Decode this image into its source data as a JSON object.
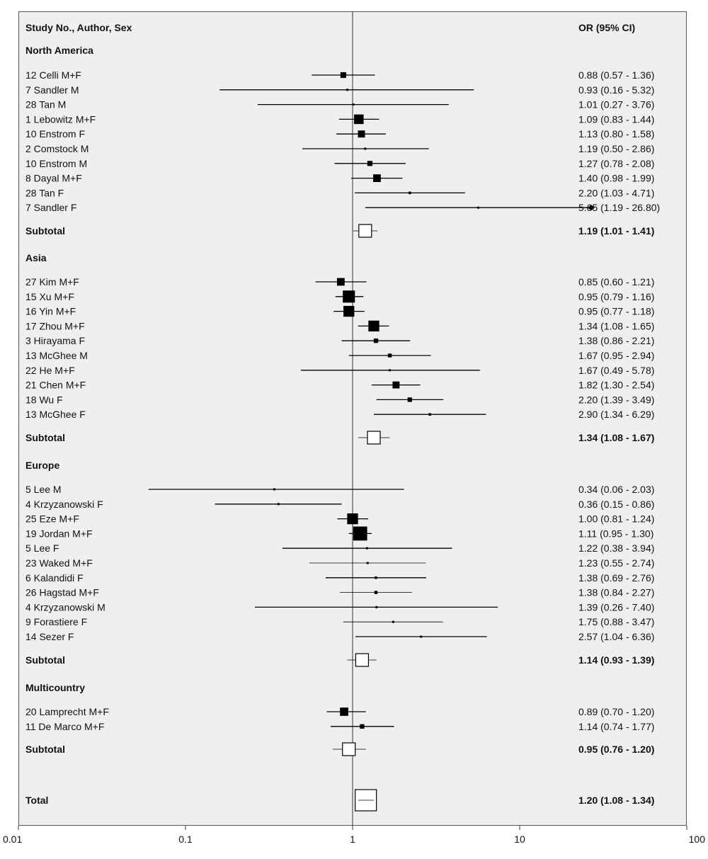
{
  "chart_data": {
    "type": "forest",
    "header": {
      "left": "Study No., Author, Sex",
      "right": "OR (95% CI)"
    },
    "x_axis": {
      "scale": "log",
      "range": [
        0.01,
        100
      ],
      "ticks": [
        "0.01",
        "0.1",
        "1",
        "10",
        "100"
      ],
      "reference_line": 1
    },
    "groups": [
      {
        "name": "North America",
        "studies": [
          {
            "label": "12 Celli M+F",
            "or": 0.88,
            "lo": 0.57,
            "hi": 1.36,
            "text": "0.88 (0.57 - 1.36)",
            "weight": 9
          },
          {
            "label": "7 Sandler M",
            "or": 0.93,
            "lo": 0.16,
            "hi": 5.32,
            "text": "0.93 (0.16 - 5.32)",
            "weight": 2
          },
          {
            "label": "28 Tan M",
            "or": 1.01,
            "lo": 0.27,
            "hi": 3.76,
            "text": "1.01 (0.27 - 3.76)",
            "weight": 2
          },
          {
            "label": "1 Lebowitz M+F",
            "or": 1.09,
            "lo": 0.83,
            "hi": 1.44,
            "text": "1.09 (0.83 - 1.44)",
            "weight": 15
          },
          {
            "label": "10 Enstrom F",
            "or": 1.13,
            "lo": 0.8,
            "hi": 1.58,
            "text": "1.13 (0.80 - 1.58)",
            "weight": 11
          },
          {
            "label": "2 Comstock M",
            "or": 1.19,
            "lo": 0.5,
            "hi": 2.86,
            "text": "1.19 (0.50 - 2.86)",
            "weight": 3
          },
          {
            "label": "10 Enstrom M",
            "or": 1.27,
            "lo": 0.78,
            "hi": 2.08,
            "text": "1.27 (0.78 - 2.08)",
            "weight": 8
          },
          {
            "label": "8 Dayal M+F",
            "or": 1.4,
            "lo": 0.98,
            "hi": 1.99,
            "text": "1.40 (0.98 - 1.99)",
            "weight": 12
          },
          {
            "label": "28 Tan F",
            "or": 2.2,
            "lo": 1.03,
            "hi": 4.71,
            "text": "2.20 (1.03 - 4.71)",
            "weight": 4
          },
          {
            "label": "7 Sandler F",
            "or": 5.65,
            "lo": 1.19,
            "hi": 26.8,
            "text": "5.65 (1.19 - 26.80)",
            "weight": 2,
            "arrow": true
          }
        ],
        "subtotal": {
          "label": "Subtotal",
          "or": 1.19,
          "lo": 1.01,
          "hi": 1.41,
          "text": "1.19 (1.01 - 1.41)"
        }
      },
      {
        "name": "Asia",
        "studies": [
          {
            "label": "27 Kim M+F",
            "or": 0.85,
            "lo": 0.6,
            "hi": 1.21,
            "text": "0.85 (0.60 - 1.21)",
            "weight": 12
          },
          {
            "label": "15 Xu M+F",
            "or": 0.95,
            "lo": 0.79,
            "hi": 1.16,
            "text": "0.95 (0.79 - 1.16)",
            "weight": 19
          },
          {
            "label": "16 Yin  M+F",
            "or": 0.95,
            "lo": 0.77,
            "hi": 1.18,
            "text": "0.95 (0.77 - 1.18)",
            "weight": 17
          },
          {
            "label": "17 Zhou M+F",
            "or": 1.34,
            "lo": 1.08,
            "hi": 1.65,
            "text": "1.34 (1.08 - 1.65)",
            "weight": 17
          },
          {
            "label": "3 Hirayama F",
            "or": 1.38,
            "lo": 0.86,
            "hi": 2.21,
            "text": "1.38 (0.86 - 2.21)",
            "weight": 7
          },
          {
            "label": "13 McGhee M",
            "or": 1.67,
            "lo": 0.95,
            "hi": 2.94,
            "text": "1.67 (0.95 - 2.94)",
            "weight": 6
          },
          {
            "label": "22 He M+F",
            "or": 1.67,
            "lo": 0.49,
            "hi": 5.78,
            "text": "1.67 (0.49 - 5.78)",
            "weight": 2
          },
          {
            "label": "21 Chen M+F",
            "or": 1.82,
            "lo": 1.3,
            "hi": 2.54,
            "text": "1.82 (1.30 - 2.54)",
            "weight": 11
          },
          {
            "label": "18 Wu F",
            "or": 2.2,
            "lo": 1.39,
            "hi": 3.49,
            "text": "2.20 (1.39 - 3.49)",
            "weight": 7
          },
          {
            "label": "13 McGhee F",
            "or": 2.9,
            "lo": 1.34,
            "hi": 6.29,
            "text": "2.90 (1.34 - 6.29)",
            "weight": 4
          }
        ],
        "subtotal": {
          "label": "Subtotal",
          "or": 1.34,
          "lo": 1.08,
          "hi": 1.67,
          "text": "1.34 (1.08 - 1.67)"
        }
      },
      {
        "name": "Europe",
        "studies": [
          {
            "label": "5 Lee M",
            "or": 0.34,
            "lo": 0.06,
            "hi": 2.03,
            "text": "0.34 (0.06 - 2.03)",
            "weight": 2
          },
          {
            "label": "4 Krzyzanowski  F",
            "or": 0.36,
            "lo": 0.15,
            "hi": 0.86,
            "text": "0.36 (0.15 - 0.86)",
            "weight": 3
          },
          {
            "label": "25 Eze M+F",
            "or": 1.0,
            "lo": 0.81,
            "hi": 1.24,
            "text": "1.00 (0.81 - 1.24)",
            "weight": 17
          },
          {
            "label": "19 Jordan M+F",
            "or": 1.11,
            "lo": 0.95,
            "hi": 1.3,
            "text": "1.11 (0.95 - 1.30)",
            "weight": 22
          },
          {
            "label": "5 Lee F",
            "or": 1.22,
            "lo": 0.38,
            "hi": 3.94,
            "text": "1.22 (0.38 - 3.94)",
            "weight": 2
          },
          {
            "label": "23 Waked M+F",
            "or": 1.23,
            "lo": 0.55,
            "hi": 2.74,
            "text": "1.23 (0.55 - 2.74)",
            "weight": 3,
            "thin": true
          },
          {
            "label": "6 Kalandidi  F",
            "or": 1.38,
            "lo": 0.69,
            "hi": 2.76,
            "text": "1.38 (0.69 - 2.76)",
            "weight": 4
          },
          {
            "label": "26 Hagstad M+F",
            "or": 1.38,
            "lo": 0.84,
            "hi": 2.27,
            "text": "1.38 (0.84 - 2.27)",
            "weight": 5,
            "thin": true
          },
          {
            "label": "4 Krzyzanowski  M",
            "or": 1.39,
            "lo": 0.26,
            "hi": 7.4,
            "text": "1.39 (0.26 - 7.40)",
            "weight": 2
          },
          {
            "label": "9 Forastiere F",
            "or": 1.75,
            "lo": 0.88,
            "hi": 3.47,
            "text": "1.75 (0.88 - 3.47)",
            "weight": 3,
            "thin": true
          },
          {
            "label": "14 Sezer F",
            "or": 2.57,
            "lo": 1.04,
            "hi": 6.36,
            "text": "2.57 (1.04 - 6.36)",
            "weight": 3
          }
        ],
        "subtotal": {
          "label": "Subtotal",
          "or": 1.14,
          "lo": 0.93,
          "hi": 1.39,
          "text": "1.14 (0.93 - 1.39)"
        }
      },
      {
        "name": "Multicountry",
        "studies": [
          {
            "label": "20 Lamprecht M+F",
            "or": 0.89,
            "lo": 0.7,
            "hi": 1.2,
            "text": "0.89 (0.70 - 1.20)",
            "weight": 13
          },
          {
            "label": "11 De Marco M+F",
            "or": 1.14,
            "lo": 0.74,
            "hi": 1.77,
            "text": "1.14 (0.74 - 1.77)",
            "weight": 7
          }
        ],
        "subtotal": {
          "label": "Subtotal",
          "or": 0.95,
          "lo": 0.76,
          "hi": 1.2,
          "text": "0.95 (0.76 - 1.20)"
        }
      }
    ],
    "total": {
      "label": "Total",
      "or": 1.2,
      "lo": 1.08,
      "hi": 1.34,
      "text": "1.20 (1.08 - 1.34)"
    }
  }
}
